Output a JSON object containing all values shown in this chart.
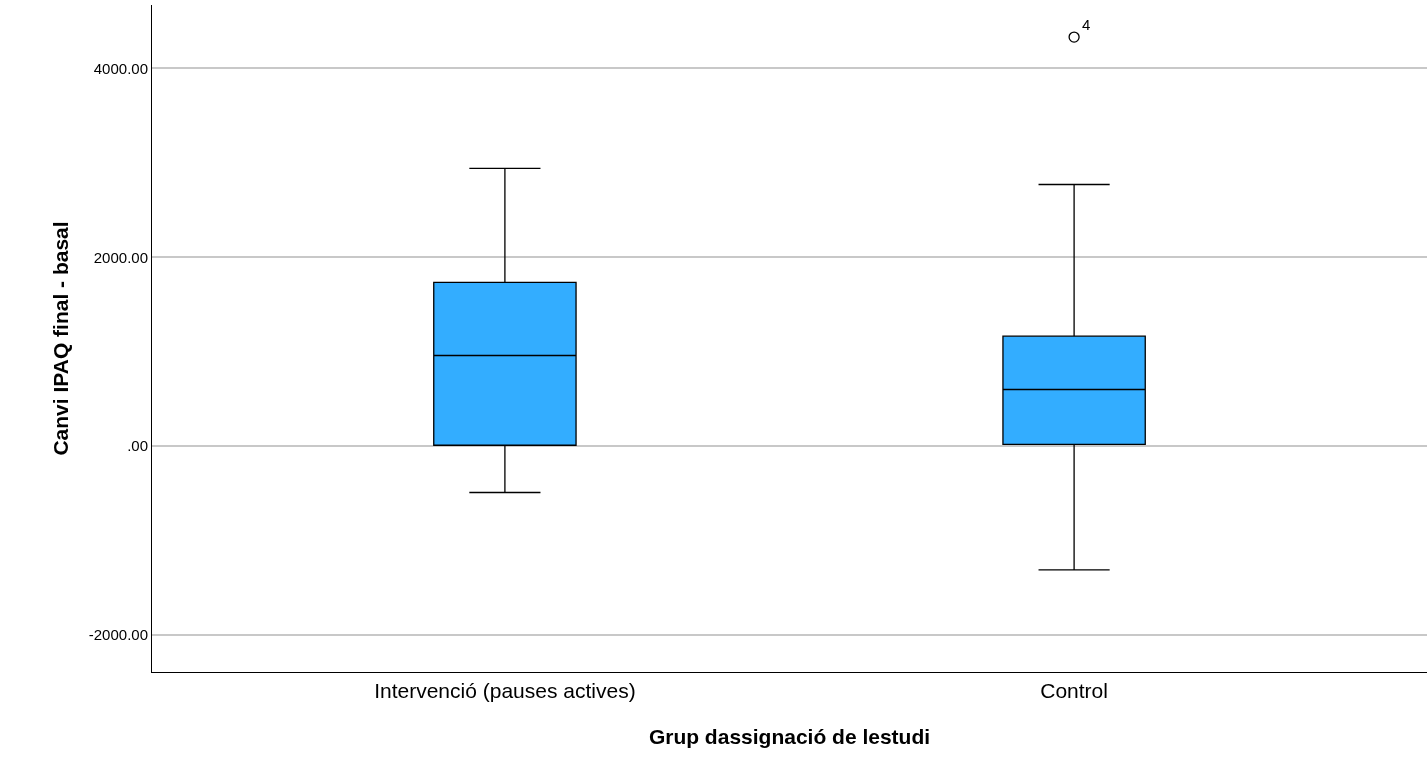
{
  "chart_data": {
    "type": "box",
    "xlabel": "Grup dassignació de lestudi",
    "ylabel": "Canvi IPAQ final - basal",
    "categories": [
      "Intervenció (pauses actives)",
      "Control"
    ],
    "color": "#33adff",
    "boxes": [
      {
        "low": -490,
        "q1": 10,
        "median": 960,
        "q3": 1735,
        "high": 2940
      },
      {
        "low": -1310,
        "q1": 20,
        "median": 600,
        "q3": 1165,
        "high": 2770,
        "outliers": [
          4330
        ]
      }
    ],
    "ylim": [
      -2390,
      4670
    ],
    "yticks": [
      {
        "value": -2000,
        "label": "-2000.00"
      },
      {
        "value": 0,
        "label": ".00"
      },
      {
        "value": 2000,
        "label": "2000.00"
      },
      {
        "value": 4000,
        "label": "4000.00"
      }
    ],
    "grid": "y",
    "annotations": [
      "4"
    ]
  }
}
